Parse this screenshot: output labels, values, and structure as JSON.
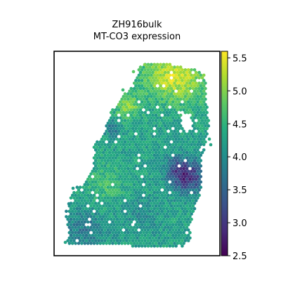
{
  "chart_data": {
    "type": "scatter",
    "subtype": "spatial-hexbin",
    "title": "ZH916bulk",
    "subtitle": "MT-CO3 expression",
    "xlabel": "",
    "ylabel": "",
    "grid": false,
    "colormap": "viridis",
    "color_range": [
      2.5,
      5.6
    ],
    "colorbar": {
      "ticks": [
        2.5,
        3.0,
        3.5,
        4.0,
        4.5,
        5.0,
        5.5
      ],
      "tick_labels": [
        "2.5",
        "3.0",
        "3.5",
        "4.0",
        "4.5",
        "5.0",
        "5.5"
      ]
    },
    "expression_regions": [
      {
        "region": "top-right",
        "value": 5.1
      },
      {
        "region": "upper-left",
        "value": 4.9
      },
      {
        "region": "mid-right-hole-edge",
        "value": 3.1
      },
      {
        "region": "lower-left",
        "value": 3.8
      }
    ]
  }
}
